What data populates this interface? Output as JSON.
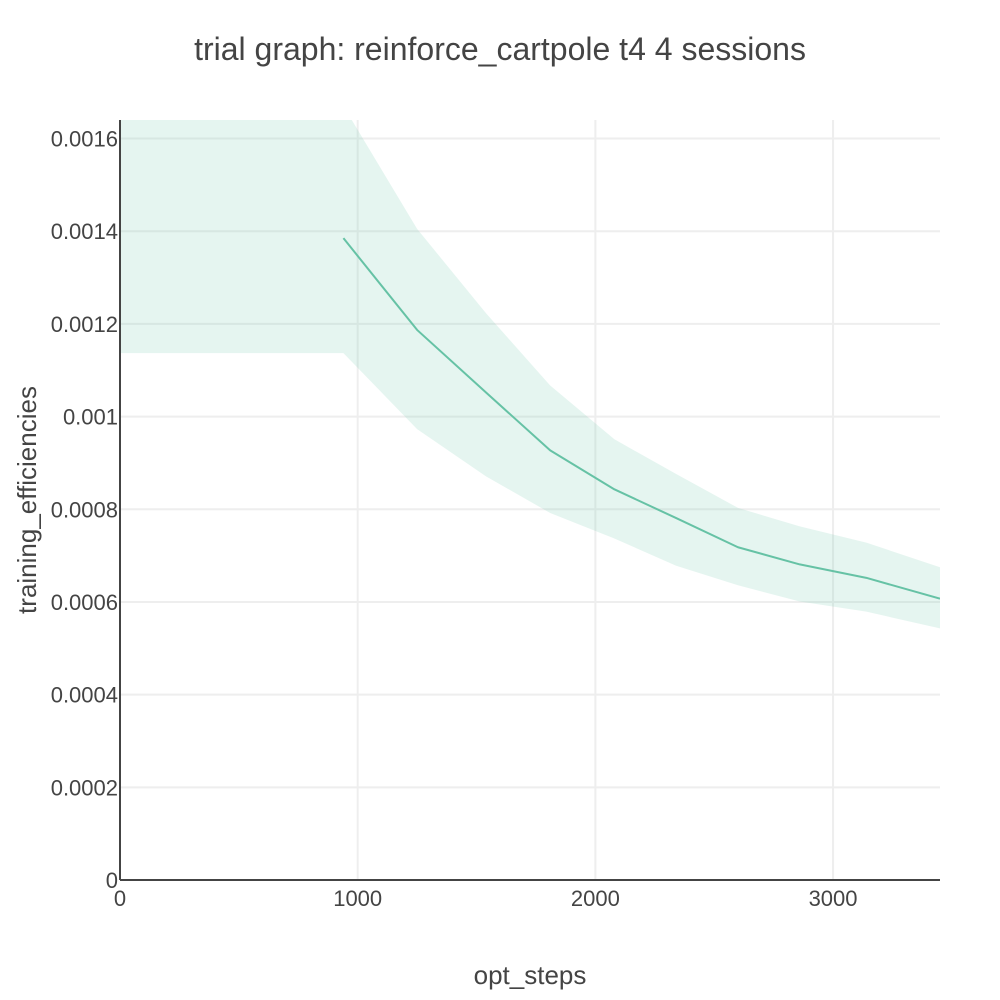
{
  "chart_data": {
    "type": "line",
    "title": "trial graph: reinforce_cartpole t4 4 sessions",
    "xlabel": "opt_steps",
    "ylabel": "training_efficiencies",
    "xlim": [
      0,
      3450
    ],
    "ylim": [
      0,
      0.00164
    ],
    "x_ticks": [
      {
        "value": 0,
        "label": "0"
      },
      {
        "value": 1000,
        "label": "1000"
      },
      {
        "value": 2000,
        "label": "2000"
      },
      {
        "value": 3000,
        "label": "3000"
      }
    ],
    "y_ticks": [
      {
        "value": 0,
        "label": "0"
      },
      {
        "value": 0.0002,
        "label": "0.0002"
      },
      {
        "value": 0.0004,
        "label": "0.0004"
      },
      {
        "value": 0.0006,
        "label": "0.0006"
      },
      {
        "value": 0.0008,
        "label": "0.0008"
      },
      {
        "value": 0.001,
        "label": "0.001"
      },
      {
        "value": 0.0012,
        "label": "0.0012"
      },
      {
        "value": 0.0014,
        "label": "0.0014"
      },
      {
        "value": 0.0016,
        "label": "0.0016"
      }
    ],
    "grid": true,
    "color": "#66c2a5",
    "band_color": "#66c2a5",
    "band_opacity": 0.17,
    "series": [
      {
        "name": "mean",
        "x": [
          940,
          1250,
          1540,
          1810,
          2080,
          2340,
          2600,
          2860,
          3140,
          3450
        ],
        "y": [
          0.001385,
          0.001187,
          0.001052,
          0.000927,
          0.000843,
          0.000781,
          0.000718,
          0.000681,
          0.000652,
          0.000607
        ]
      }
    ],
    "band": {
      "x": [
        0,
        940,
        1250,
        1540,
        1810,
        2080,
        2340,
        2600,
        2860,
        3140,
        3450
      ],
      "upper": [
        0.00167,
        0.00167,
        0.001405,
        0.001223,
        0.001067,
        0.000951,
        0.000876,
        0.000803,
        0.000763,
        0.000728,
        0.000675
      ],
      "lower": [
        0.001137,
        0.001137,
        0.000973,
        0.000871,
        0.000792,
        0.000737,
        0.000678,
        0.000636,
        0.000601,
        0.000579,
        0.000543
      ]
    }
  }
}
